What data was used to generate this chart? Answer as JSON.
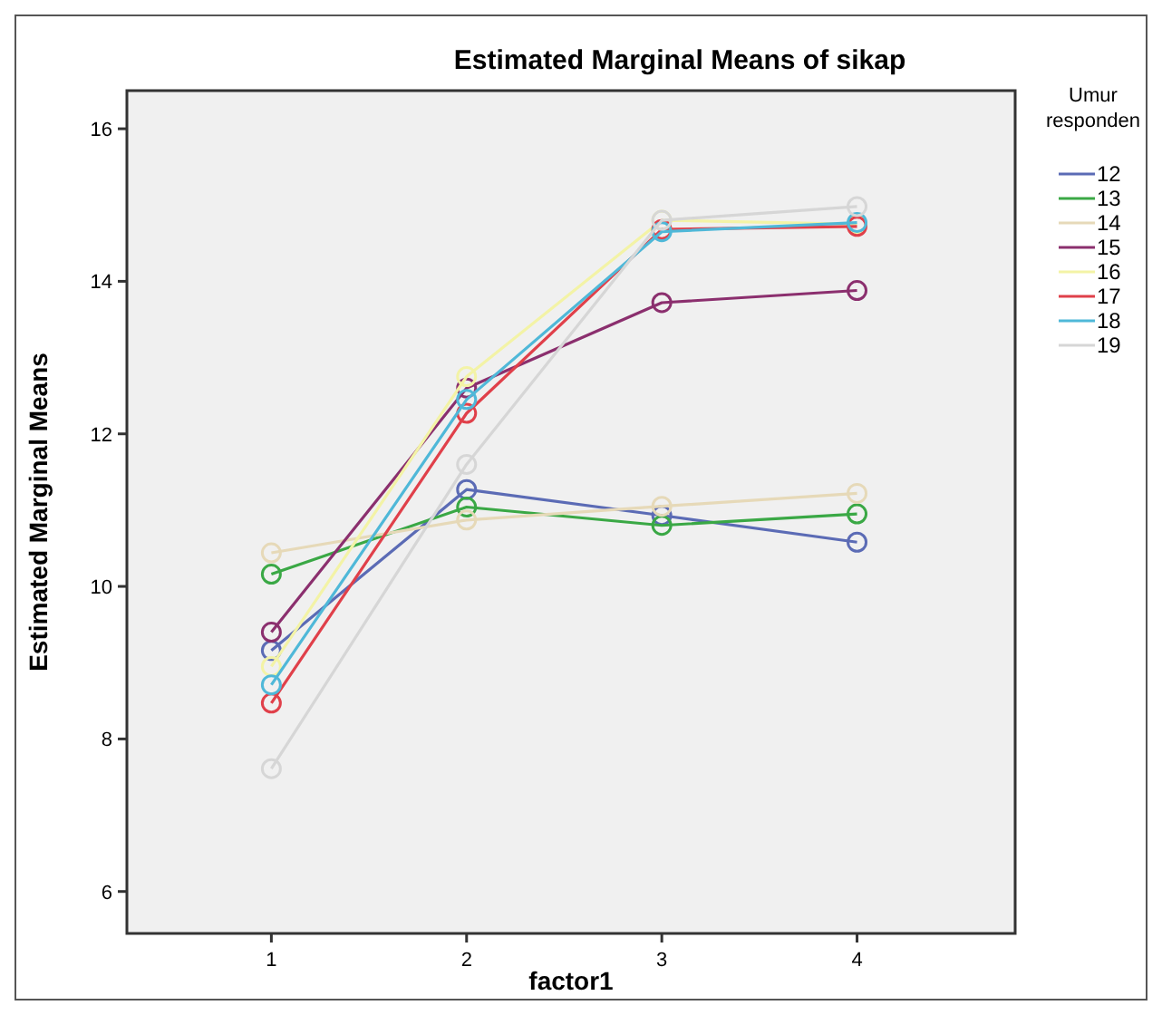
{
  "chart_data": {
    "type": "line",
    "title": "Estimated Marginal Means of sikap",
    "xlabel": "factor1",
    "ylabel": "Estimated Marginal Means",
    "legend_title": "Umur responden",
    "categories": [
      "1",
      "2",
      "3",
      "4"
    ],
    "ylim": [
      5.45,
      16.5
    ],
    "yticks": [
      6,
      8,
      10,
      12,
      14,
      16
    ],
    "marker": "circle",
    "line_style": "solid",
    "grid": false,
    "legend": "right",
    "series": [
      {
        "name": "12",
        "color": "#5b6bb5",
        "values": [
          9.16,
          11.27,
          10.93,
          10.58
        ]
      },
      {
        "name": "13",
        "color": "#3aa845",
        "values": [
          10.16,
          11.04,
          10.8,
          10.95
        ]
      },
      {
        "name": "14",
        "color": "#e6d9b8",
        "values": [
          10.44,
          10.87,
          11.05,
          11.22
        ]
      },
      {
        "name": "15",
        "color": "#8b2f6e",
        "values": [
          9.4,
          12.6,
          13.72,
          13.88
        ]
      },
      {
        "name": "16",
        "color": "#f3f3a6",
        "values": [
          8.95,
          12.75,
          14.8,
          14.75
        ]
      },
      {
        "name": "17",
        "color": "#e0404a",
        "values": [
          8.47,
          12.27,
          14.68,
          14.72
        ]
      },
      {
        "name": "18",
        "color": "#4fb8d8",
        "values": [
          8.71,
          12.45,
          14.65,
          14.77
        ]
      },
      {
        "name": "19",
        "color": "#d6d6d6",
        "values": [
          7.61,
          11.6,
          14.8,
          14.98
        ]
      }
    ]
  }
}
